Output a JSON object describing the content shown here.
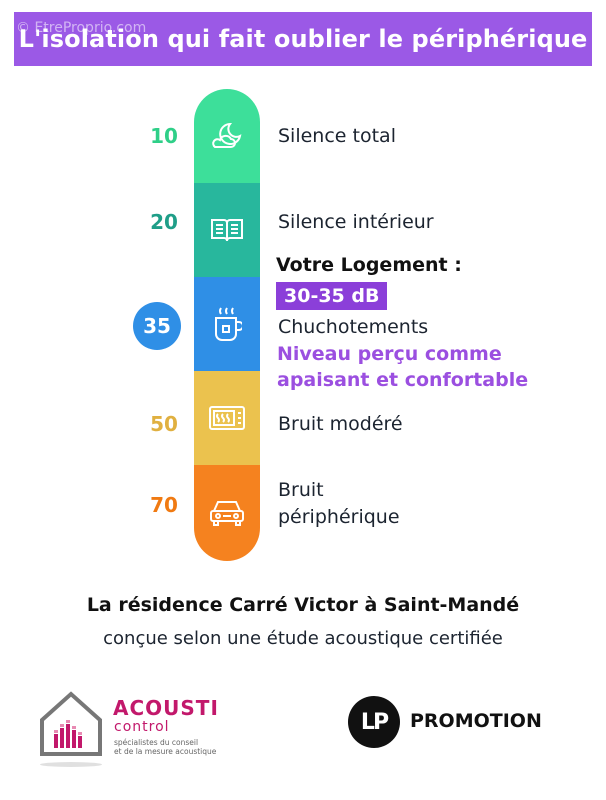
{
  "header": {
    "title": "L'isolation qui fait oublier le périphérique",
    "watermark": "© EtreProprio.com"
  },
  "scale": {
    "levels": [
      {
        "value": "10",
        "label": "Silence total",
        "icon": "moon-cloud-icon",
        "color": "#3ddf9a",
        "value_color": "#2fcf88"
      },
      {
        "value": "20",
        "label": "Silence intérieur",
        "icon": "open-book-icon",
        "color": "#28b79d",
        "value_color": "#1f9e88"
      },
      {
        "value": "35",
        "label": "Chuchotements",
        "icon": "hot-cup-icon",
        "color": "#2f8fe6",
        "value_color": "#ffffff"
      },
      {
        "value": "50",
        "label": "Bruit modéré",
        "icon": "microwave-icon",
        "color": "#ebc24e",
        "value_color": "#e0b040"
      },
      {
        "value": "70",
        "label_line1": "Bruit",
        "label_line2": "périphérique",
        "icon": "car-icon",
        "color": "#f5821f",
        "value_color": "#f07a12"
      }
    ],
    "highlight": {
      "heading": "Votre Logement :",
      "range": "30-35 dB",
      "perception_line1": "Niveau perçu comme",
      "perception_line2": "apaisant et confortable"
    }
  },
  "footer": {
    "residence": "La résidence Carré Victor à Saint-Mandé",
    "concue": "conçue selon une étude acoustique certifiée"
  },
  "logos": {
    "acousti_name": "ACOUSTI",
    "acousti_sub": "control",
    "acousti_tag_line1": "spécialistes du conseil",
    "acousti_tag_line2": "et de la mesure acoustique",
    "lp_mark": "LP",
    "lp_text": "PROMOTION"
  }
}
